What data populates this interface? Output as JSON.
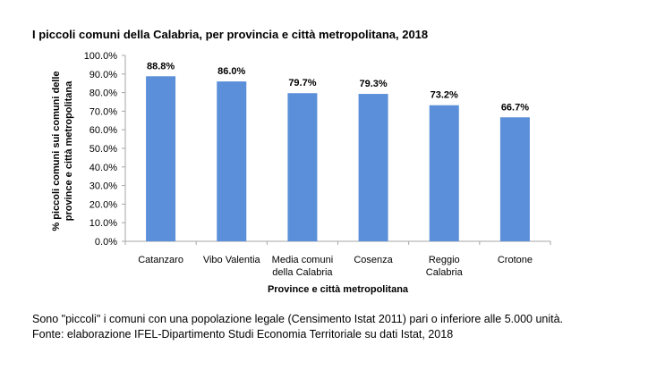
{
  "chart_data": {
    "type": "bar",
    "title": "I piccoli comuni della Calabria, per provincia e città metropolitana, 2018",
    "xlabel": "Province e città metropolitana",
    "ylabel_lines": [
      "% piccoli comuni sui comuni delle",
      "province e città metropolitana"
    ],
    "categories": [
      [
        "Catanzaro"
      ],
      [
        "Vibo Valentia"
      ],
      [
        "Media comuni",
        "della Calabria"
      ],
      [
        "Cosenza"
      ],
      [
        "Reggio",
        "Calabria"
      ],
      [
        "Crotone"
      ]
    ],
    "values": [
      88.8,
      86.0,
      79.7,
      79.3,
      73.2,
      66.7
    ],
    "value_labels": [
      "88.8%",
      "86.0%",
      "79.7%",
      "79.3%",
      "73.2%",
      "66.7%"
    ],
    "yticks": [
      "0.0%",
      "10.0%",
      "20.0%",
      "30.0%",
      "40.0%",
      "50.0%",
      "60.0%",
      "70.0%",
      "80.0%",
      "90.0%",
      "100.0%"
    ],
    "ylim": [
      0,
      100
    ],
    "bar_color": "#5B8FD9",
    "grid": false,
    "legend": "none"
  },
  "notes": {
    "line1": "Sono \"piccoli\" i comuni con una popolazione legale (Censimento Istat 2011) pari o inferiore alle 5.000 unità.",
    "line2": "Fonte: elaborazione IFEL-Dipartimento Studi Economia Territoriale su dati Istat, 2018"
  }
}
